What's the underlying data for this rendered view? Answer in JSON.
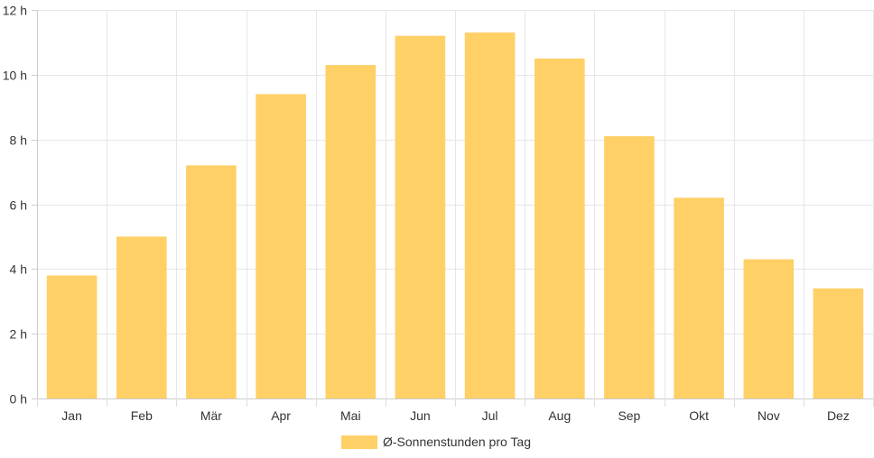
{
  "chart_data": {
    "type": "bar",
    "categories": [
      "Jan",
      "Feb",
      "Mär",
      "Apr",
      "Mai",
      "Jun",
      "Jul",
      "Aug",
      "Sep",
      "Okt",
      "Nov",
      "Dez"
    ],
    "series": [
      {
        "name": "Ø-Sonnenstunden pro Tag",
        "values": [
          3.8,
          5.0,
          7.2,
          9.4,
          10.3,
          11.2,
          11.3,
          10.5,
          8.1,
          6.2,
          4.3,
          3.4
        ],
        "color": "#ffd066"
      }
    ],
    "title": "",
    "xlabel": "",
    "ylabel": "",
    "ylim": [
      0,
      12
    ],
    "yticks": [
      0,
      2,
      4,
      6,
      8,
      10,
      12
    ],
    "ytick_labels": [
      "0 h",
      "2 h",
      "4 h",
      "6 h",
      "8 h",
      "10 h",
      "12 h"
    ],
    "grid": true,
    "legend_position": "bottom"
  }
}
